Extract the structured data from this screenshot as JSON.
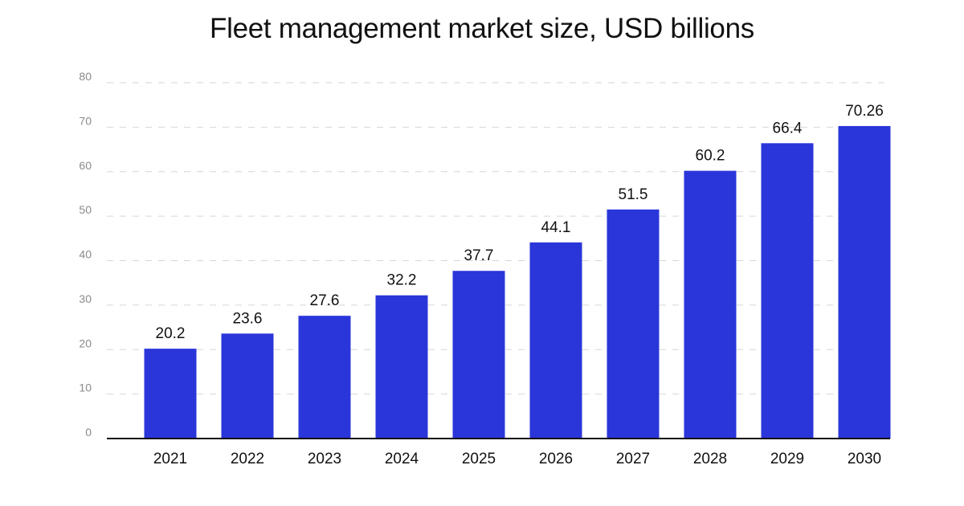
{
  "chart_data": {
    "type": "bar",
    "title": "Fleet management market size, USD billions",
    "xlabel": "",
    "ylabel": "",
    "categories": [
      "2021",
      "2022",
      "2023",
      "2024",
      "2025",
      "2026",
      "2027",
      "2028",
      "2029",
      "2030"
    ],
    "values": [
      20.2,
      23.6,
      27.6,
      32.2,
      37.7,
      44.1,
      51.5,
      60.2,
      66.4,
      70.26
    ],
    "data_labels": [
      "20.2",
      "23.6",
      "27.6",
      "32.2",
      "37.7",
      "44.1",
      "51.5",
      "60.2",
      "66.4",
      "70.26"
    ],
    "ylim": [
      0,
      80
    ],
    "yticks": [
      "0",
      "10",
      "20",
      "30",
      "40",
      "50",
      "60",
      "70",
      "80"
    ],
    "grid": true,
    "bar_color": "#2a36d9"
  }
}
